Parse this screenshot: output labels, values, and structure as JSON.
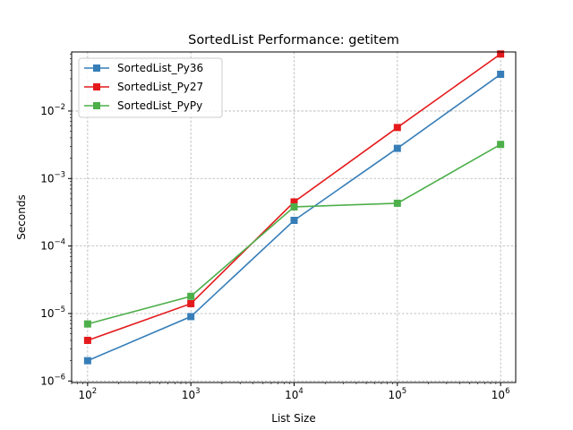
{
  "chart_data": {
    "type": "line",
    "title": "SortedList Performance: getitem",
    "xlabel": "List Size",
    "ylabel": "Seconds",
    "xscale": "log",
    "yscale": "log",
    "xlim": [
      70,
      1400000
    ],
    "ylim": [
      9.5e-07,
      0.075
    ],
    "grid": true,
    "legend_position": "top-left",
    "x": [
      100,
      1000,
      10000,
      100000,
      1000000
    ],
    "x_ticks": [
      {
        "value": 100,
        "base": "10",
        "exp": "2"
      },
      {
        "value": 1000,
        "base": "10",
        "exp": "3"
      },
      {
        "value": 10000,
        "base": "10",
        "exp": "4"
      },
      {
        "value": 100000,
        "base": "10",
        "exp": "5"
      },
      {
        "value": 1000000,
        "base": "10",
        "exp": "6"
      }
    ],
    "y_ticks": [
      {
        "value": 1e-06,
        "base": "10",
        "exp": "−6"
      },
      {
        "value": 1e-05,
        "base": "10",
        "exp": "−5"
      },
      {
        "value": 0.0001,
        "base": "10",
        "exp": "−4"
      },
      {
        "value": 0.001,
        "base": "10",
        "exp": "−3"
      },
      {
        "value": 0.01,
        "base": "10",
        "exp": "−2"
      }
    ],
    "series": [
      {
        "name": "SortedList_Py36",
        "color": "#377eb8",
        "values": [
          2e-06,
          9e-06,
          0.00024,
          0.0028,
          0.035
        ]
      },
      {
        "name": "SortedList_Py27",
        "color": "#e41a1c",
        "values": [
          4e-06,
          1.4e-05,
          0.00045,
          0.0057,
          0.07
        ]
      },
      {
        "name": "SortedList_PyPy",
        "color": "#4daf4a",
        "values": [
          7e-06,
          1.8e-05,
          0.00038,
          0.00043,
          0.0032
        ]
      }
    ]
  }
}
